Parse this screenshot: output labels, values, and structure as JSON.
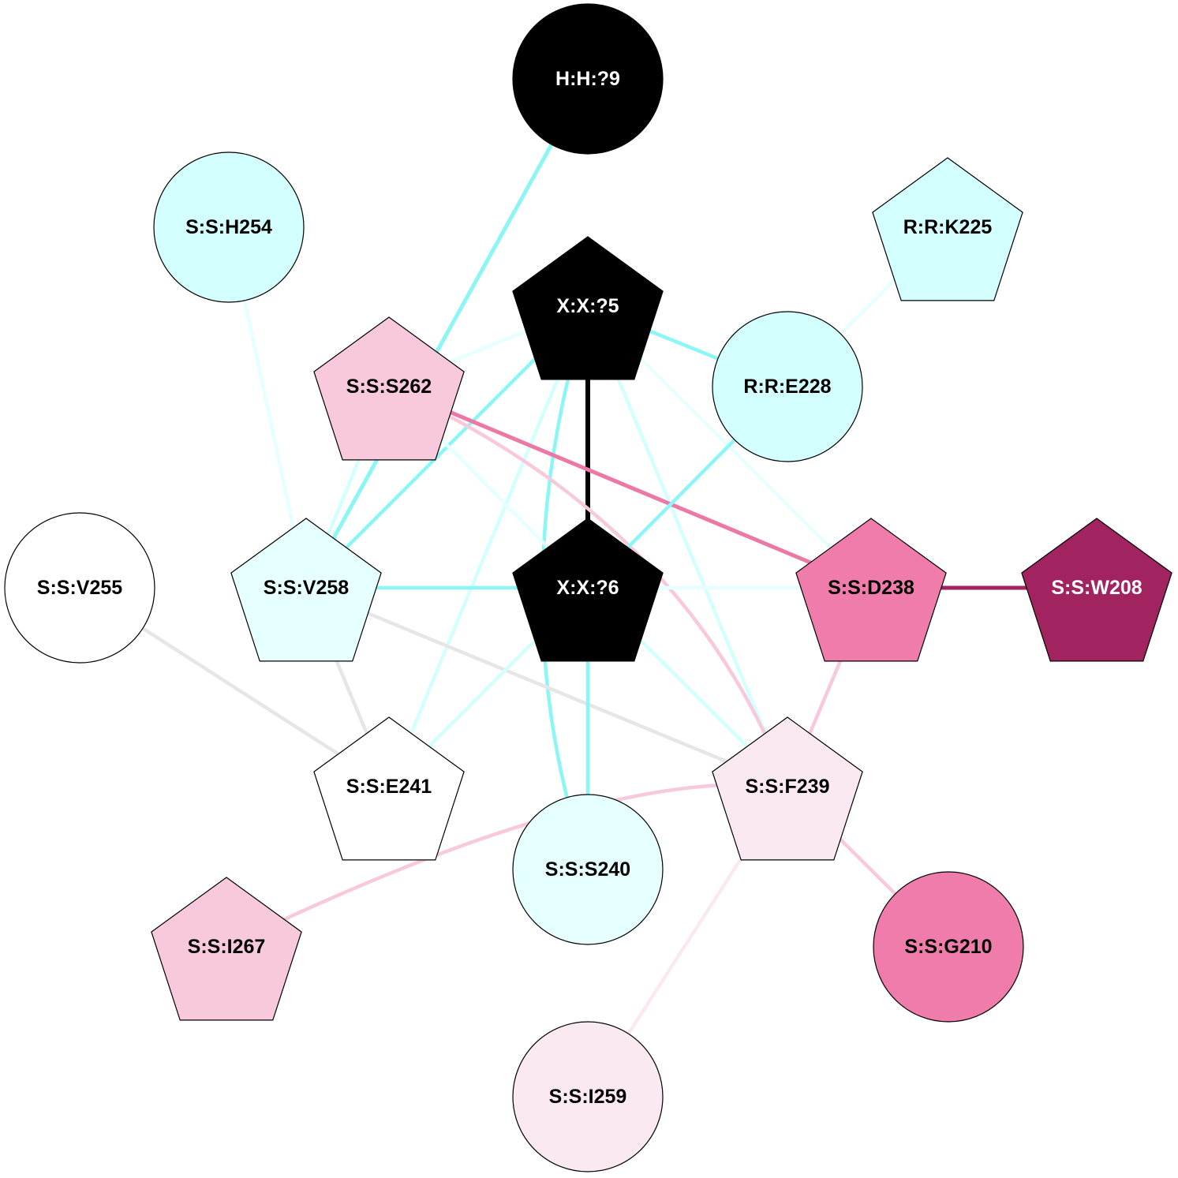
{
  "nodes": [
    {
      "id": "H:H:?9",
      "label": "H:H:?9",
      "shape": "circle",
      "fill": "#000000",
      "text": "#ffffff"
    },
    {
      "id": "S:S:H254",
      "label": "S:S:H254",
      "shape": "circle",
      "fill": "#d4ffff",
      "text": "#000000"
    },
    {
      "id": "R:R:K225",
      "label": "R:R:K225",
      "shape": "pentagon",
      "fill": "#d4ffff",
      "text": "#000000"
    },
    {
      "id": "X:X:?5",
      "label": "X:X:?5",
      "shape": "pentagon",
      "fill": "#000000",
      "text": "#ffffff"
    },
    {
      "id": "S:S:S262",
      "label": "S:S:S262",
      "shape": "pentagon",
      "fill": "#f8c8dc",
      "text": "#000000"
    },
    {
      "id": "R:R:E228",
      "label": "R:R:E228",
      "shape": "circle",
      "fill": "#d4ffff",
      "text": "#000000"
    },
    {
      "id": "S:S:V255",
      "label": "S:S:V255",
      "shape": "circle",
      "fill": "#ffffff",
      "text": "#000000"
    },
    {
      "id": "S:S:V258",
      "label": "S:S:V258",
      "shape": "pentagon",
      "fill": "#e6ffff",
      "text": "#000000"
    },
    {
      "id": "X:X:?6",
      "label": "X:X:?6",
      "shape": "pentagon",
      "fill": "#000000",
      "text": "#ffffff"
    },
    {
      "id": "S:S:D238",
      "label": "S:S:D238",
      "shape": "pentagon",
      "fill": "#f07cab",
      "text": "#000000"
    },
    {
      "id": "S:S:W208",
      "label": "S:S:W208",
      "shape": "pentagon",
      "fill": "#a12360",
      "text": "#ffffff"
    },
    {
      "id": "S:S:E241",
      "label": "S:S:E241",
      "shape": "pentagon",
      "fill": "#ffffff",
      "text": "#000000"
    },
    {
      "id": "S:S:F239",
      "label": "S:S:F239",
      "shape": "pentagon",
      "fill": "#fbe9f1",
      "text": "#000000"
    },
    {
      "id": "S:S:S240",
      "label": "S:S:S240",
      "shape": "circle",
      "fill": "#e6ffff",
      "text": "#000000"
    },
    {
      "id": "S:S:I267",
      "label": "S:S:I267",
      "shape": "pentagon",
      "fill": "#f8c8dc",
      "text": "#000000"
    },
    {
      "id": "S:S:G210",
      "label": "S:S:G210",
      "shape": "circle",
      "fill": "#f07cab",
      "text": "#000000"
    },
    {
      "id": "S:S:I259",
      "label": "S:S:I259",
      "shape": "circle",
      "fill": "#fbe9f1",
      "text": "#000000"
    }
  ],
  "edges": [
    {
      "from": "S:S:H254",
      "to": "S:S:V258",
      "color": "#e6ffff"
    },
    {
      "from": "R:R:K225",
      "to": "R:R:E228",
      "color": "#e6ffff"
    },
    {
      "from": "S:S:S262",
      "to": "X:X:?5",
      "color": "#e6ffff"
    },
    {
      "from": "X:X:?5",
      "to": "R:R:E228",
      "color": "#8cf5f5"
    },
    {
      "from": "X:X:?5",
      "to": "S:S:V258",
      "color": "#8cf5f5"
    },
    {
      "from": "X:X:?5",
      "to": "X:X:?6",
      "color": "#000000"
    },
    {
      "from": "X:X:?5",
      "to": "S:S:D238",
      "color": "#e6ffff"
    },
    {
      "from": "X:X:?5",
      "to": "S:S:F239",
      "color": "#d4ffff"
    },
    {
      "from": "X:X:?5",
      "to": "S:S:E241",
      "color": "#d4ffff"
    },
    {
      "from": "X:X:?5",
      "to": "S:S:S240",
      "color": "#8cf5f5"
    },
    {
      "from": "H:H:?9",
      "to": "S:S:V258",
      "color": "#8cf5f5"
    },
    {
      "from": "S:S:S262",
      "to": "S:S:D238",
      "color": "#ec78a6"
    },
    {
      "from": "S:S:S262",
      "to": "S:S:F239",
      "color": "#f8c8dc"
    },
    {
      "from": "S:S:S262",
      "to": "S:S:V258",
      "color": "#d4ffff"
    },
    {
      "from": "S:S:S262",
      "to": "X:X:?6",
      "color": "#e6ffff"
    },
    {
      "from": "R:R:E228",
      "to": "X:X:?6",
      "color": "#8cf5f5"
    },
    {
      "from": "S:S:V258",
      "to": "X:X:?6",
      "color": "#8cf5f5"
    },
    {
      "from": "X:X:?6",
      "to": "S:S:D238",
      "color": "#e6ffff"
    },
    {
      "from": "S:S:D238",
      "to": "S:S:W208",
      "color": "#a12360"
    },
    {
      "from": "S:S:V255",
      "to": "S:S:E241",
      "color": "#e6e6e6"
    },
    {
      "from": "S:S:V258",
      "to": "S:S:E241",
      "color": "#e6e6e6"
    },
    {
      "from": "S:S:V258",
      "to": "S:S:F239",
      "color": "#e6e6e6"
    },
    {
      "from": "X:X:?6",
      "to": "S:S:E241",
      "color": "#d4ffff"
    },
    {
      "from": "X:X:?6",
      "to": "S:S:S240",
      "color": "#8cf5f5"
    },
    {
      "from": "X:X:?6",
      "to": "S:S:F239",
      "color": "#d4ffff"
    },
    {
      "from": "S:S:D238",
      "to": "S:S:F239",
      "color": "#f8c8dc"
    },
    {
      "from": "S:S:F239",
      "to": "S:S:I267",
      "color": "#f8c8dc"
    },
    {
      "from": "S:S:F239",
      "to": "S:S:G210",
      "color": "#f8c8dc"
    },
    {
      "from": "S:S:F239",
      "to": "S:S:I259",
      "color": "#fbe9f1"
    }
  ]
}
